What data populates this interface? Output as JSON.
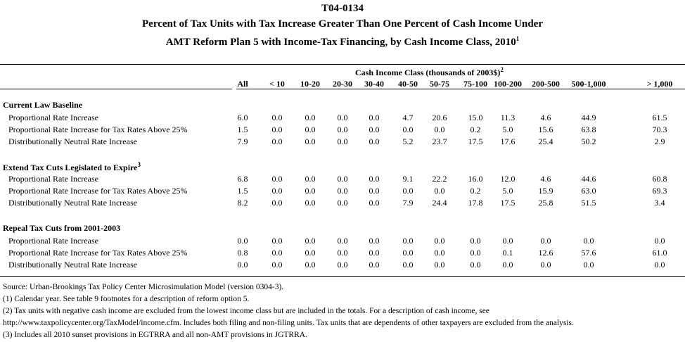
{
  "title": {
    "id": "T04-0134",
    "line1": "Percent of Tax Units with Tax Increase Greater Than One Percent of Cash Income Under",
    "line2": "AMT Reform Plan 5 with Income-Tax Financing, by Cash Income Class, 2010",
    "line2_sup": "1"
  },
  "table": {
    "group_header": "Cash Income Class (thousands of 2003$)",
    "group_header_sup": "2",
    "columns": [
      "All",
      "< 10",
      "10-20",
      "20-30",
      "30-40",
      "40-50",
      "50-75",
      "75-100",
      "100-200",
      "200-500",
      "500-1,000",
      "> 1,000"
    ],
    "sections": [
      {
        "title": "Current Law Baseline",
        "sup": "",
        "rows": [
          {
            "label": "Proportional Rate Increase",
            "values": [
              "6.0",
              "0.0",
              "0.0",
              "0.0",
              "0.0",
              "4.7",
              "20.6",
              "15.0",
              "11.3",
              "4.6",
              "44.9",
              "61.5"
            ]
          },
          {
            "label": "Proportional Rate Increase for Tax Rates Above 25%",
            "values": [
              "1.5",
              "0.0",
              "0.0",
              "0.0",
              "0.0",
              "0.0",
              "0.0",
              "0.2",
              "5.0",
              "15.6",
              "63.8",
              "70.3"
            ]
          },
          {
            "label": "Distributionally Neutral Rate Increase",
            "values": [
              "7.9",
              "0.0",
              "0.0",
              "0.0",
              "0.0",
              "5.2",
              "23.7",
              "17.5",
              "17.6",
              "25.4",
              "50.2",
              "2.9"
            ]
          }
        ]
      },
      {
        "title": "Extend Tax Cuts Legislated to Expire",
        "sup": "3",
        "rows": [
          {
            "label": "Proportional Rate Increase",
            "values": [
              "6.8",
              "0.0",
              "0.0",
              "0.0",
              "0.0",
              "9.1",
              "22.2",
              "16.0",
              "12.0",
              "4.6",
              "44.6",
              "60.8"
            ]
          },
          {
            "label": "Proportional Rate Increase for Tax Rates Above 25%",
            "values": [
              "1.5",
              "0.0",
              "0.0",
              "0.0",
              "0.0",
              "0.0",
              "0.0",
              "0.2",
              "5.0",
              "15.9",
              "63.0",
              "69.3"
            ]
          },
          {
            "label": "Distributionally Neutral Rate Increase",
            "values": [
              "8.2",
              "0.0",
              "0.0",
              "0.0",
              "0.0",
              "7.9",
              "24.4",
              "17.8",
              "17.5",
              "25.8",
              "51.5",
              "3.4"
            ]
          }
        ]
      },
      {
        "title": "Repeal Tax Cuts from 2001-2003",
        "sup": "",
        "rows": [
          {
            "label": "Proportional Rate Increase",
            "values": [
              "0.0",
              "0.0",
              "0.0",
              "0.0",
              "0.0",
              "0.0",
              "0.0",
              "0.0",
              "0.0",
              "0.0",
              "0.0",
              "0.0"
            ]
          },
          {
            "label": "Proportional Rate Increase for Tax Rates Above 25%",
            "values": [
              "0.8",
              "0.0",
              "0.0",
              "0.0",
              "0.0",
              "0.0",
              "0.0",
              "0.0",
              "0.1",
              "12.6",
              "57.6",
              "61.0"
            ]
          },
          {
            "label": "Distributionally Neutral Rate Increase",
            "values": [
              "0.0",
              "0.0",
              "0.0",
              "0.0",
              "0.0",
              "0.0",
              "0.0",
              "0.0",
              "0.0",
              "0.0",
              "0.0",
              "0.0"
            ]
          }
        ]
      }
    ]
  },
  "footnotes": [
    "Source: Urban-Brookings Tax Policy Center Microsimulation Model (version 0304-3).",
    "(1) Calendar year.  See table 9 footnotes for a description of reform option 5.",
    "(2) Tax units with negative cash income are excluded from the lowest income class but are included in the totals. For a description of cash income, see",
    "http://www.taxpolicycenter.org/TaxModel/income.cfm. Includes both filing and non-filing units.  Tax units that are dependents of other taxpayers are excluded from the analysis.",
    "(3) Includes all 2010 sunset provisions in EGTRRA and all non-AMT provisions in JGTRRA."
  ]
}
